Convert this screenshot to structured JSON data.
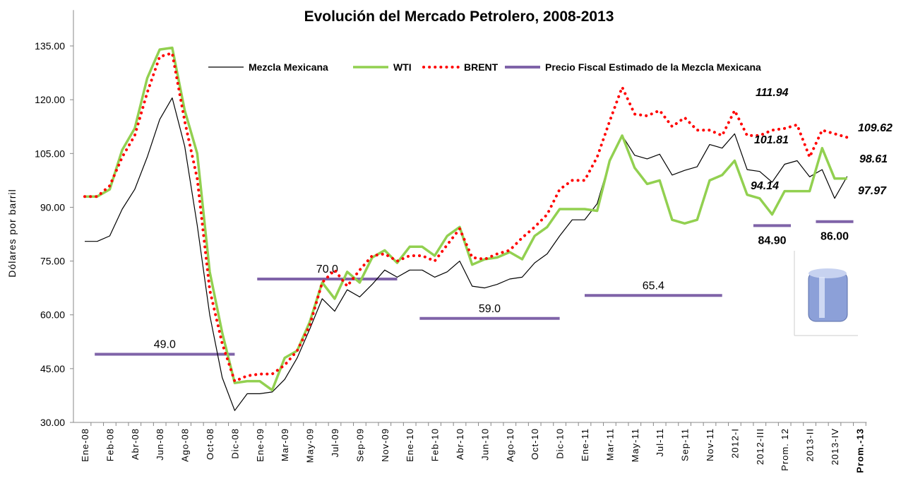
{
  "chart_data": {
    "type": "line",
    "title": "Evolución del Mercado Petrolero, 2008-2013",
    "y_label": "Dólares por barril",
    "categories": [
      "Ene-08",
      null,
      "Feb-08",
      null,
      "Abr-08",
      null,
      "Jun-08",
      null,
      "Ago-08",
      null,
      "Oct-08",
      null,
      "Dic-08",
      null,
      "Ene-09",
      null,
      "Mar-09",
      null,
      "May-09",
      null,
      "Jul-09",
      null,
      "Sep-09",
      null,
      "Nov-09",
      null,
      "Ene-10",
      null,
      "Feb-10",
      null,
      "Abr-10",
      null,
      "Jun-10",
      null,
      "Ago-10",
      null,
      "Oct-10",
      null,
      "Dic-10",
      null,
      "Ene-11",
      null,
      "Mar-11",
      null,
      "May-11",
      null,
      "Jul-11",
      null,
      "Sep-11",
      null,
      "Nov-11",
      null,
      "2012-I",
      null,
      "2012-III",
      null,
      "Prom. 12",
      null,
      "2013-II",
      null,
      "2013-IV",
      null,
      "Prom.-13"
    ],
    "series": [
      {
        "name": "Mezcla Mexicana",
        "color": "#000000",
        "style": "solid",
        "width": 1.2,
        "values": [
          80.5,
          80.5,
          82,
          89.5,
          95,
          104,
          114.5,
          120.5,
          107,
          85,
          60,
          42.5,
          33.3,
          38,
          38,
          38.5,
          42,
          48,
          56,
          64.5,
          61,
          67,
          65,
          68.5,
          72.5,
          70.5,
          72.5,
          72.5,
          70.5,
          72,
          75,
          68,
          67.5,
          68.5,
          70,
          70.5,
          74.5,
          77,
          82,
          86.5,
          86.5,
          91,
          103,
          110,
          104.5,
          103.5,
          104.8,
          99,
          100.3,
          101.3,
          107.5,
          106.5,
          110.5,
          100.5,
          100,
          97,
          102,
          103,
          98.5,
          100.5,
          92.5,
          98.6,
          null
        ]
      },
      {
        "name": "WTI",
        "color": "#92d050",
        "style": "solid",
        "width": 3.5,
        "values": [
          93,
          93,
          95,
          106,
          112,
          126,
          134,
          134.5,
          117,
          105,
          72,
          55,
          41,
          41.5,
          41.5,
          39,
          48,
          50,
          58,
          69,
          64.5,
          72,
          69,
          76,
          78,
          74.5,
          79,
          79,
          76.5,
          82,
          84.5,
          74,
          75.5,
          76,
          77.5,
          75.5,
          82,
          84.5,
          89.5,
          89.5,
          89.5,
          89,
          103,
          110,
          101,
          96.5,
          97.5,
          86.5,
          85.5,
          86.5,
          97.5,
          99,
          103,
          93.5,
          92.5,
          88,
          94.5,
          94.5,
          94.5,
          106.5,
          98,
          98,
          null
        ]
      },
      {
        "name": "BRENT",
        "color": "#ff0000",
        "style": "dotted",
        "width": 4,
        "values": [
          93,
          93,
          96,
          104,
          110,
          122,
          132,
          133,
          114,
          98,
          67,
          52,
          41.5,
          43,
          43.5,
          43.5,
          46,
          50,
          57,
          69,
          72.5,
          68,
          72.5,
          76.5,
          77,
          75,
          76.5,
          76.5,
          75,
          79.5,
          84,
          76,
          75.5,
          77,
          78,
          81.5,
          84.5,
          88,
          95,
          97.5,
          97.5,
          104,
          114,
          123.5,
          116,
          115.5,
          117,
          112.5,
          115,
          111.5,
          111.5,
          110,
          117,
          110,
          110,
          111.5,
          112,
          113,
          104,
          111.5,
          110.5,
          109.5,
          null
        ]
      }
    ],
    "fiscal": {
      "name": "Precio Fiscal Estimado de la Mezcla Mexicana",
      "color": "#7f63a8",
      "values": [
        49,
        70,
        59,
        65.4,
        84.9,
        86
      ],
      "value_labels": [
        "49.0",
        "70.0",
        "59.0",
        "65.4",
        "84.90",
        "86.00"
      ],
      "spans": [
        [
          0.8,
          12
        ],
        [
          13.8,
          25
        ],
        [
          26.8,
          38
        ],
        [
          40,
          51
        ],
        [
          53.5,
          56.5
        ],
        [
          58.5,
          61.5
        ]
      ]
    },
    "annotations": [
      "111.94",
      "101.81",
      "94.14",
      "109.62",
      "98.61",
      "97.97"
    ],
    "ylim": [
      30,
      145
    ],
    "yticks": [
      {
        "value": 30,
        "label": "30.00"
      },
      {
        "value": 45,
        "label": "45.00"
      },
      {
        "value": 60,
        "label": "60.00"
      },
      {
        "value": 75,
        "label": "75.00"
      },
      {
        "value": 90,
        "label": "90.00"
      },
      {
        "value": 105,
        "label": "105.00"
      },
      {
        "value": 120,
        "label": "120.00"
      },
      {
        "value": 135,
        "label": "135.00"
      }
    ],
    "grid": false
  }
}
